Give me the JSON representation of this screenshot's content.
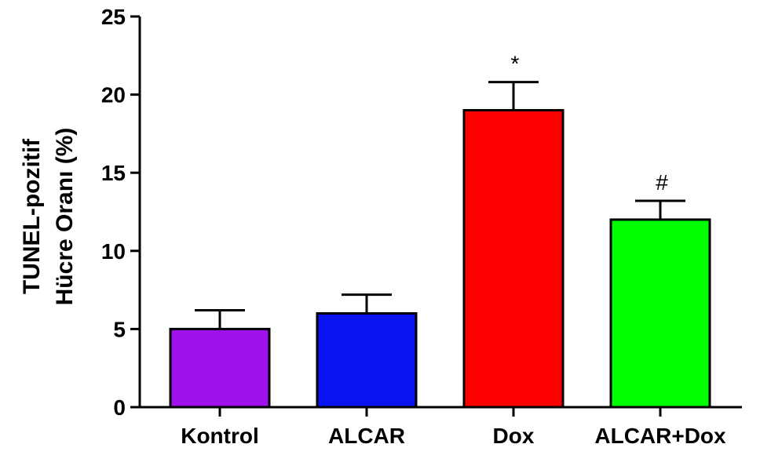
{
  "chart_data": {
    "type": "bar",
    "categories": [
      "Kontrol",
      "ALCAR",
      "Dox",
      "ALCAR+Dox"
    ],
    "values": [
      5.0,
      6.0,
      19.0,
      12.0
    ],
    "errors": [
      1.2,
      1.2,
      1.8,
      1.2
    ],
    "annotations": [
      "",
      "",
      "*",
      "#"
    ],
    "colors": [
      "#a010e8",
      "#0a14f0",
      "#ff0000",
      "#00ff00"
    ],
    "ylabel_lines": [
      "TUNEL-pozitif",
      "Hücre Oranı (%)"
    ],
    "ylim": [
      0,
      25
    ],
    "yticks": [
      0,
      5,
      10,
      15,
      20,
      25
    ],
    "grid": false
  }
}
